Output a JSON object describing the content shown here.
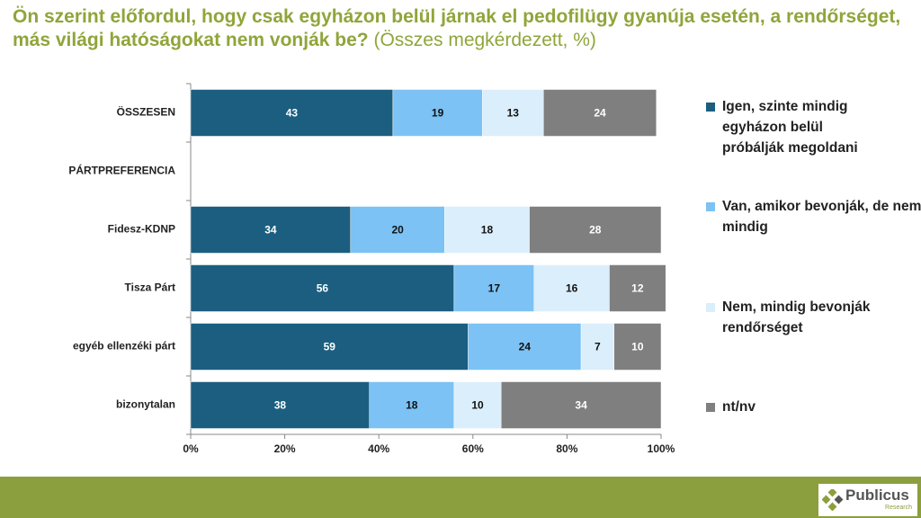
{
  "chart_data": {
    "type": "stacked-bar-horizontal",
    "title": "Ön szerint előfordul, hogy csak egyházon belül járnak el pedofilügy gyanúja esetén, a rendőrséget, más világi hatóságokat nem vonják be?",
    "subtitle": "(Összes megkérdezett, %)",
    "categories": [
      "ÖSSZESEN",
      "PÁRTPREFERENCIA",
      "Fidesz-KDNP",
      "Tisza Párt",
      "egyéb ellenzéki párt",
      "bizonytalan"
    ],
    "series": [
      {
        "name": "Igen, szinte mindig egyházon belül próbálják megoldani",
        "color": "#1b5e80",
        "values": [
          43,
          null,
          34,
          56,
          59,
          38
        ]
      },
      {
        "name": "Van, amikor bevonják, de nem mindig",
        "color": "#7cc2f4",
        "values": [
          19,
          null,
          20,
          17,
          24,
          18
        ]
      },
      {
        "name": "Nem, mindig bevonják rendőrséget",
        "color": "#dbeefb",
        "values": [
          13,
          null,
          18,
          16,
          7,
          10
        ]
      },
      {
        "name": "nt/nv",
        "color": "#7f7f7f",
        "values": [
          24,
          null,
          28,
          12,
          10,
          34
        ]
      }
    ],
    "xlim": [
      0,
      100
    ],
    "xticks": [
      {
        "value": 0,
        "label": "0%"
      },
      {
        "value": 20,
        "label": "20%"
      },
      {
        "value": 40,
        "label": "40%"
      },
      {
        "value": 60,
        "label": "60%"
      },
      {
        "value": 80,
        "label": "80%"
      },
      {
        "value": 100,
        "label": "100%"
      }
    ],
    "legend": "right"
  },
  "footer": {
    "logo": "Publicus",
    "logo_sub": "Research"
  }
}
